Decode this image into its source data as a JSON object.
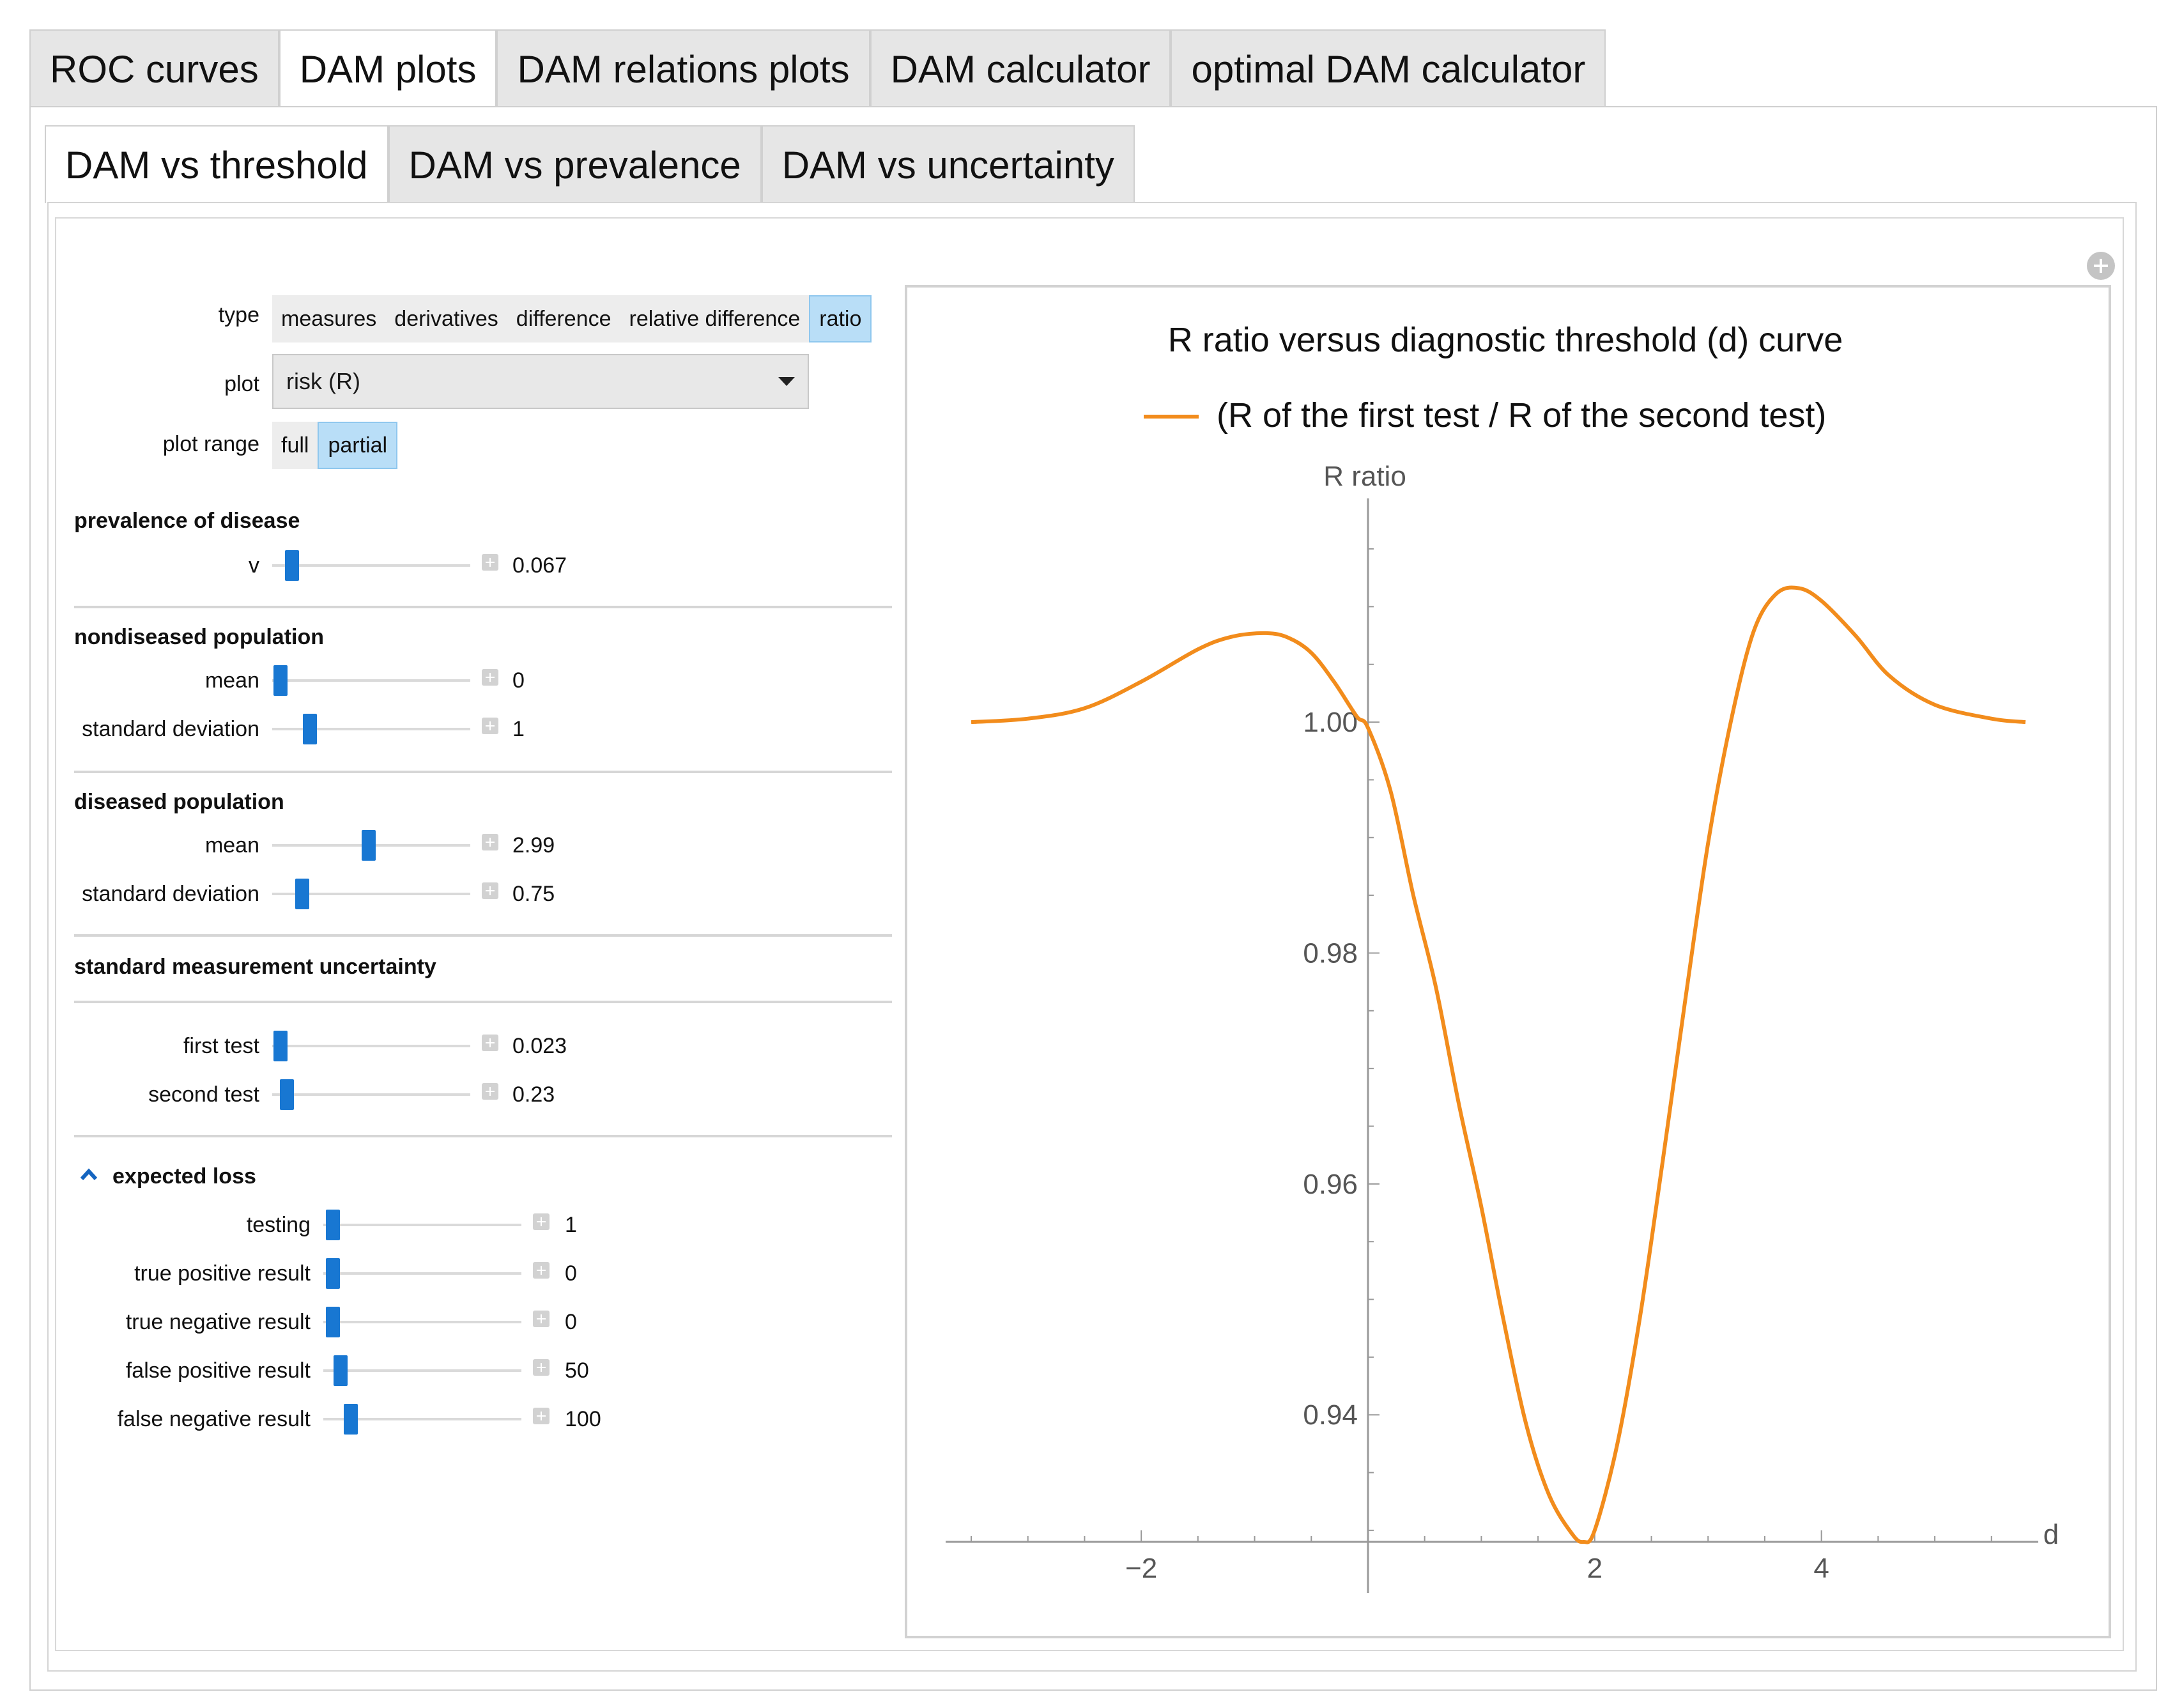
{
  "top_tabs": [
    "ROC curves",
    "DAM plots",
    "DAM relations plots",
    "DAM calculator",
    "optimal DAM calculator"
  ],
  "top_tabs_active": "DAM plots",
  "sub_tabs": [
    "DAM vs threshold",
    "DAM vs prevalence",
    "DAM vs uncertainty"
  ],
  "sub_tabs_active": "DAM vs threshold",
  "controls": {
    "type": {
      "label": "type",
      "options": [
        "measures",
        "derivatives",
        "difference",
        "relative difference",
        "ratio"
      ],
      "selected": "ratio"
    },
    "plot": {
      "label": "plot",
      "value": "risk (R)"
    },
    "plot_range": {
      "label": "plot range",
      "options": [
        "full",
        "partial"
      ],
      "selected": "partial"
    }
  },
  "sections": {
    "prevalence": {
      "title": "prevalence of disease",
      "sliders": [
        {
          "label": "v",
          "value": "0.067",
          "fraction": 0.07
        }
      ]
    },
    "nondiseased": {
      "title": "nondiseased population",
      "sliders": [
        {
          "label": "mean",
          "value": "0",
          "fraction": 0.0
        },
        {
          "label": "standard deviation",
          "value": "1",
          "fraction": 0.17
        }
      ]
    },
    "diseased": {
      "title": "diseased population",
      "sliders": [
        {
          "label": "mean",
          "value": "2.99",
          "fraction": 0.5
        },
        {
          "label": "standard deviation",
          "value": "0.75",
          "fraction": 0.13
        }
      ]
    },
    "uncertainty": {
      "title": "standard measurement uncertainty",
      "sliders": [
        {
          "label": "first test",
          "value": "0.023",
          "fraction": 0.01
        },
        {
          "label": "second test",
          "value": "0.23",
          "fraction": 0.05
        }
      ]
    },
    "loss": {
      "title": "expected loss",
      "sliders": [
        {
          "label": "testing",
          "value": "1",
          "fraction": 0.01
        },
        {
          "label": "true positive result",
          "value": "0",
          "fraction": 0.0
        },
        {
          "label": "true negative result",
          "value": "0",
          "fraction": 0.0
        },
        {
          "label": "false positive result",
          "value": "50",
          "fraction": 0.05
        },
        {
          "label": "false negative result",
          "value": "100",
          "fraction": 0.1
        }
      ]
    }
  },
  "chart_data": {
    "type": "line",
    "title": "R ratio versus diagnostic threshold (d) curve",
    "xlabel": "d",
    "ylabel": "R ratio",
    "xlim": [
      -3.5,
      5.8
    ],
    "ylim": [
      0.929,
      1.0155
    ],
    "x_ticks": [
      -2,
      2,
      4
    ],
    "y_ticks": [
      "1.00",
      "0.98",
      "0.96",
      "0.94"
    ],
    "x_tick_labels": [
      "−2",
      "2",
      "4"
    ],
    "grid": false,
    "legend_position": "top",
    "series": [
      {
        "name": "(R of the first test / R of the second test)",
        "color": "#f28c1c",
        "x": [
          -3.5,
          -3.0,
          -2.5,
          -2.0,
          -1.5,
          -1.2,
          -0.9,
          -0.7,
          -0.5,
          -0.3,
          -0.1,
          0.0,
          0.2,
          0.4,
          0.6,
          0.8,
          1.0,
          1.2,
          1.4,
          1.6,
          1.8,
          1.9,
          2.0,
          2.2,
          2.4,
          2.6,
          2.8,
          3.0,
          3.2,
          3.4,
          3.6,
          3.8,
          4.0,
          4.3,
          4.6,
          5.0,
          5.5,
          5.8
        ],
        "y": [
          1.0,
          1.0003,
          1.0012,
          1.0035,
          1.0063,
          1.0074,
          1.0077,
          1.0073,
          1.006,
          1.0035,
          1.0005,
          0.9995,
          0.994,
          0.985,
          0.977,
          0.967,
          0.958,
          0.948,
          0.939,
          0.933,
          0.9297,
          0.929,
          0.93,
          0.9375,
          0.9485,
          0.962,
          0.976,
          0.9895,
          1.0,
          1.0078,
          1.0111,
          1.0116,
          1.0105,
          1.0075,
          1.004,
          1.0015,
          1.0003,
          1.0
        ]
      }
    ]
  }
}
